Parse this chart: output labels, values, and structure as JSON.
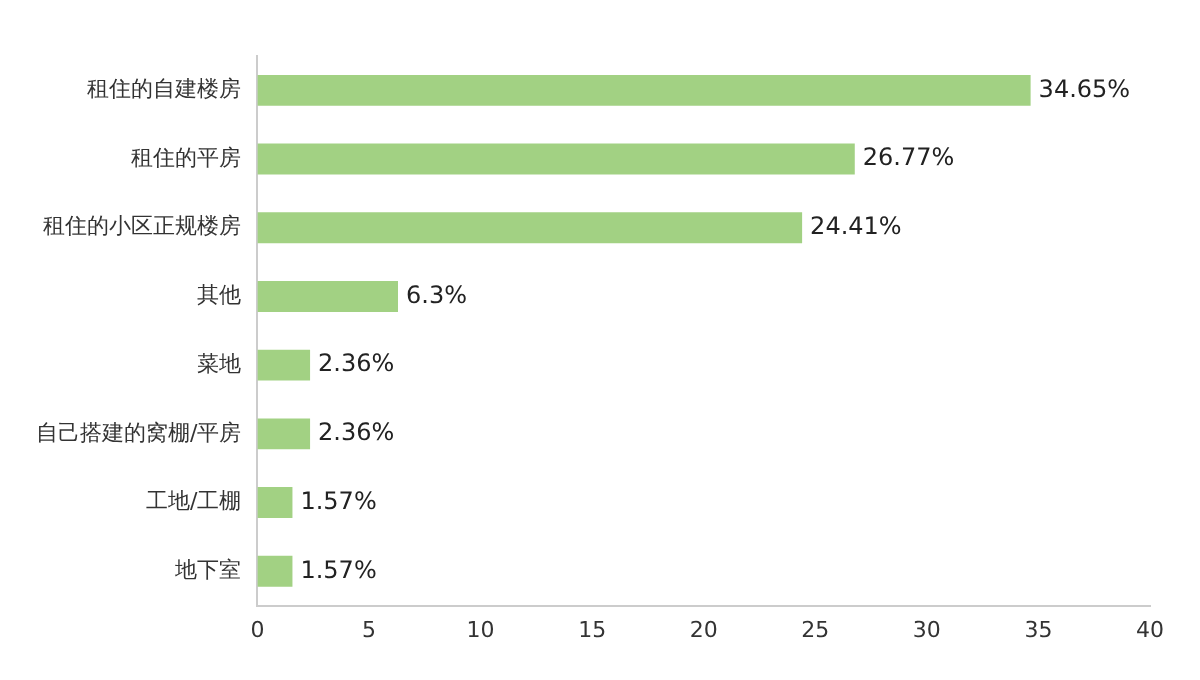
{
  "chart_data": {
    "type": "bar",
    "orientation": "horizontal",
    "categories": [
      "租住的自建楼房",
      "租住的平房",
      "租住的小区正规楼房",
      "其他",
      "菜地",
      "自己搭建的窝棚/平房",
      "工地/工棚",
      "地下室"
    ],
    "values": [
      34.65,
      26.77,
      24.41,
      6.3,
      2.36,
      2.36,
      1.57,
      1.57
    ],
    "value_labels": [
      "34.65%",
      "26.77%",
      "24.41%",
      "6.3%",
      "2.36%",
      "2.36%",
      "1.57%",
      "1.57%"
    ],
    "color": "#a2d183",
    "xlim": [
      0,
      40
    ],
    "xticks": [
      0,
      5,
      10,
      15,
      20,
      25,
      30,
      35,
      40
    ],
    "grid": false,
    "legend": false
  }
}
